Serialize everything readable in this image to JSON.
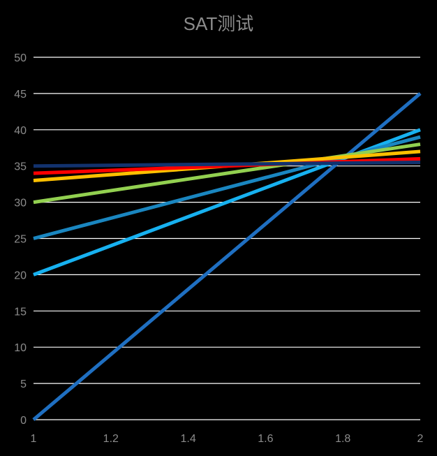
{
  "chart_data": {
    "type": "line",
    "title": "SAT测试",
    "xlabel": "",
    "ylabel": "",
    "xlim": [
      1,
      2
    ],
    "ylim": [
      0,
      50
    ],
    "x_ticks": [
      "1",
      "1.2",
      "1.4",
      "1.6",
      "1.8",
      "2"
    ],
    "y_ticks": [
      "0",
      "5",
      "10",
      "15",
      "20",
      "25",
      "30",
      "35",
      "40",
      "45",
      "50"
    ],
    "grid": true,
    "legend": "none",
    "x": [
      1,
      2
    ],
    "series": [
      {
        "values": [
          0,
          45
        ],
        "color": "#1f6fc1"
      },
      {
        "values": [
          20,
          40
        ],
        "color": "#17b1f0"
      },
      {
        "values": [
          25,
          39
        ],
        "color": "#1a86c0"
      },
      {
        "values": [
          30,
          38
        ],
        "color": "#92d050"
      },
      {
        "values": [
          33,
          37
        ],
        "color": "#ffc000"
      },
      {
        "values": [
          34,
          36
        ],
        "color": "#ff0000"
      },
      {
        "values": [
          35,
          35.5
        ],
        "color": "#12326e"
      }
    ]
  }
}
